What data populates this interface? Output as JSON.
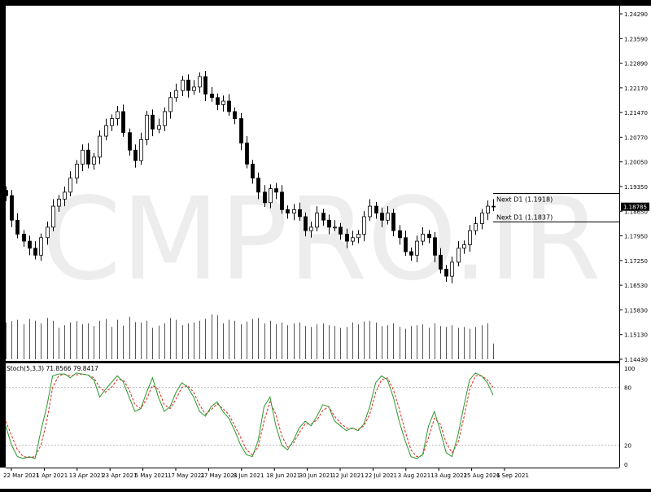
{
  "chart_data": {
    "type": "candlestick",
    "watermark": "CMPRO.IR",
    "price_axis": {
      "ticks": [
        "1.24290",
        "1.23590",
        "1.22890",
        "1.22170",
        "1.21470",
        "1.20770",
        "1.20050",
        "1.19350",
        "1.18650",
        "1.17950",
        "1.17250",
        "1.16530",
        "1.15830",
        "1.15130",
        "1.14430"
      ],
      "current_price": "1.18785",
      "range": [
        1.1443,
        1.2429
      ]
    },
    "date_axis": {
      "labels": [
        "22 Mar 2021",
        "1 Apr 2021",
        "13 Apr 2021",
        "23 Apr 2021",
        "5 May 2021",
        "17 May 2021",
        "27 May 2021",
        "8 Jun 2021",
        "18 Jun 2021",
        "30 Jun 2021",
        "12 Jul 2021",
        "22 Jul 2021",
        "3 Aug 2021",
        "13 Aug 2021",
        "25 Aug 2021",
        "6 Sep 2021"
      ]
    },
    "levels": [
      {
        "label": "Next D1 (1.1918)",
        "value": 1.1918
      },
      {
        "label": "Next D1 (1.1837)",
        "value": 1.1837
      }
    ],
    "price_series": [
      1.191,
      1.184,
      1.18,
      1.178,
      1.176,
      1.174,
      1.179,
      1.182,
      1.188,
      1.19,
      1.192,
      1.196,
      1.2,
      1.204,
      1.2,
      1.202,
      1.208,
      1.211,
      1.213,
      1.215,
      1.209,
      1.204,
      1.201,
      1.207,
      1.214,
      1.21,
      1.211,
      1.215,
      1.219,
      1.221,
      1.224,
      1.221,
      1.222,
      1.225,
      1.22,
      1.219,
      1.217,
      1.218,
      1.215,
      1.213,
      1.206,
      1.2,
      1.196,
      1.192,
      1.189,
      1.193,
      1.192,
      1.187,
      1.186,
      1.187,
      1.185,
      1.181,
      1.182,
      1.186,
      1.184,
      1.182,
      1.182,
      1.18,
      1.178,
      1.179,
      1.18,
      1.185,
      1.188,
      1.186,
      1.184,
      1.186,
      1.181,
      1.179,
      1.175,
      1.174,
      1.178,
      1.18,
      1.179,
      1.174,
      1.17,
      1.168,
      1.172,
      1.176,
      1.177,
      1.181,
      1.183,
      1.186,
      1.188,
      1.1878
    ],
    "volume_series": [
      0.82,
      0.85,
      0.88,
      0.78,
      0.9,
      0.86,
      0.8,
      0.92,
      0.86,
      0.7,
      0.76,
      0.82,
      0.85,
      0.78,
      0.8,
      0.74,
      0.86,
      0.9,
      0.72,
      0.88,
      0.75,
      0.95,
      0.83,
      0.82,
      0.86,
      0.7,
      0.75,
      0.8,
      0.92,
      0.88,
      0.76,
      0.8,
      0.82,
      0.86,
      0.9,
      1.0,
      0.98,
      0.8,
      0.88,
      0.86,
      0.78,
      0.84,
      0.9,
      0.92,
      0.8,
      0.86,
      0.78,
      0.82,
      0.76,
      0.8,
      0.82,
      0.74,
      0.72,
      0.78,
      0.8,
      0.76,
      0.74,
      0.7,
      0.72,
      0.82,
      0.78,
      0.84,
      0.86,
      0.82,
      0.74,
      0.76,
      0.8,
      0.72,
      0.68,
      0.74,
      0.76,
      0.78,
      0.7,
      0.8,
      0.74,
      0.72,
      0.76,
      0.7,
      0.72,
      0.68,
      0.72,
      0.76,
      0.8,
      0.35
    ],
    "volume_max_shown": 1.0,
    "stochastic": {
      "label": "Stoch(5,3,3) 71.8566 79.8417",
      "levels": [
        "100",
        "80",
        "20",
        "0"
      ],
      "main": [
        40,
        20,
        8,
        6,
        8,
        6,
        35,
        60,
        92,
        94,
        94,
        90,
        95,
        94,
        93,
        88,
        70,
        78,
        85,
        92,
        86,
        70,
        55,
        58,
        75,
        90,
        70,
        55,
        60,
        75,
        85,
        80,
        70,
        55,
        50,
        60,
        65,
        55,
        48,
        35,
        20,
        10,
        8,
        25,
        60,
        70,
        40,
        20,
        15,
        25,
        38,
        45,
        40,
        50,
        62,
        60,
        45,
        40,
        35,
        38,
        35,
        42,
        60,
        85,
        92,
        88,
        70,
        45,
        25,
        8,
        6,
        10,
        40,
        55,
        35,
        12,
        8,
        30,
        60,
        88,
        95,
        92,
        85,
        72
      ],
      "signal": [
        45,
        30,
        15,
        8,
        7,
        8,
        20,
        45,
        80,
        92,
        94,
        92,
        93,
        94,
        93,
        90,
        80,
        75,
        80,
        88,
        88,
        78,
        62,
        58,
        68,
        82,
        78,
        62,
        58,
        68,
        80,
        82,
        75,
        62,
        52,
        57,
        63,
        58,
        52,
        40,
        28,
        15,
        10,
        18,
        45,
        65,
        52,
        30,
        18,
        22,
        33,
        42,
        42,
        46,
        56,
        60,
        50,
        43,
        38,
        37,
        36,
        40,
        52,
        75,
        88,
        90,
        78,
        58,
        35,
        15,
        8,
        9,
        28,
        48,
        42,
        22,
        12,
        22,
        48,
        78,
        92,
        92,
        88,
        80
      ]
    }
  }
}
